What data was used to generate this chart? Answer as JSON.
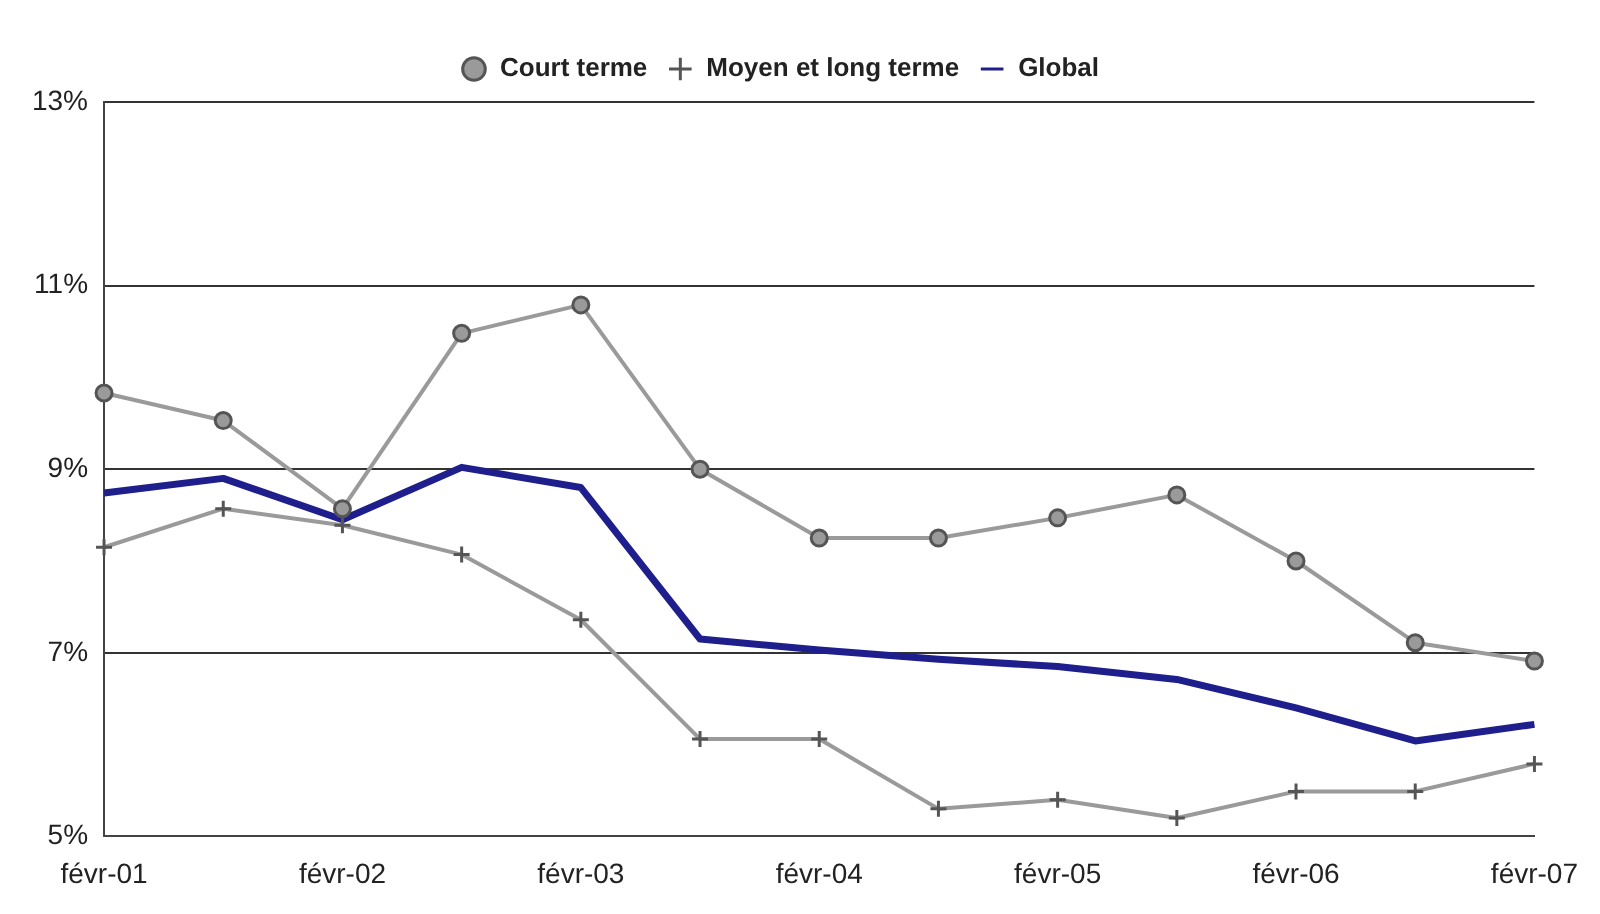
{
  "chart_data": {
    "type": "line",
    "categories": [
      "févr-01",
      null,
      "févr-02",
      null,
      "févr-03",
      null,
      "févr-04",
      null,
      "févr-05",
      null,
      "févr-06",
      null,
      "févr-07"
    ],
    "series": [
      {
        "name": "Court terme",
        "color": "#9a9a9a",
        "marker": "circle",
        "values": [
          9.83,
          9.53,
          8.57,
          10.48,
          10.79,
          9.0,
          8.25,
          8.25,
          8.47,
          8.72,
          8.0,
          7.11,
          6.91
        ]
      },
      {
        "name": "Moyen et long terme",
        "color": "#9a9a9a",
        "marker": "cross",
        "values": [
          8.15,
          8.57,
          8.39,
          8.07,
          7.36,
          6.06,
          6.06,
          5.3,
          5.4,
          5.2,
          5.49,
          5.49,
          5.79
        ]
      },
      {
        "name": "Global",
        "color": "#1e1e8c",
        "marker": "none",
        "values": [
          8.74,
          8.9,
          8.45,
          9.02,
          8.8,
          7.15,
          7.03,
          6.93,
          6.85,
          6.71,
          6.4,
          6.04,
          6.22
        ]
      }
    ],
    "ylim": [
      5,
      13
    ],
    "yticks": [
      {
        "value": 5,
        "label": "5%"
      },
      {
        "value": 7,
        "label": "7%"
      },
      {
        "value": 9,
        "label": "9%"
      },
      {
        "value": 11,
        "label": "11%"
      },
      {
        "value": 13,
        "label": "13%"
      }
    ],
    "grid": "y",
    "legend": "top",
    "line_style": "solid"
  }
}
